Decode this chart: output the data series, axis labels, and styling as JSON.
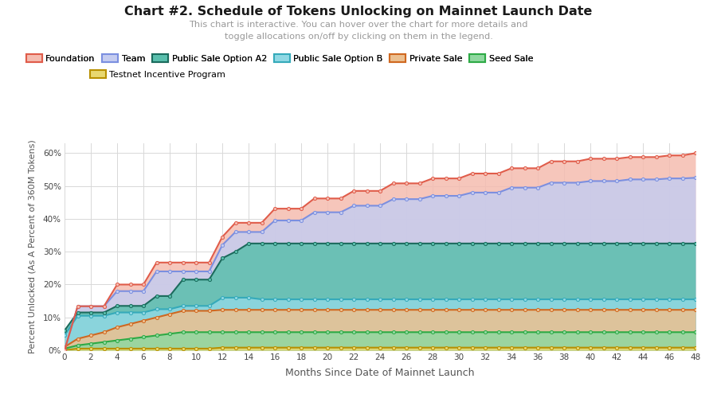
{
  "title": "Chart #2. Schedule of Tokens Unlocking on Mainnet Launch Date",
  "subtitle": "This chart is interactive. You can hover over the chart for more details and\ntoggle allocations on/off by clicking on them in the legend.",
  "xlabel": "Months Since Date of Mainnet Launch",
  "ylabel": "Percent Unlocked (As A Percent of 360M Tokens)",
  "x": [
    0,
    1,
    2,
    3,
    4,
    5,
    6,
    7,
    8,
    9,
    10,
    11,
    12,
    13,
    14,
    15,
    16,
    17,
    18,
    19,
    20,
    21,
    22,
    23,
    24,
    25,
    26,
    27,
    28,
    29,
    30,
    31,
    32,
    33,
    34,
    35,
    36,
    37,
    38,
    39,
    40,
    41,
    42,
    43,
    44,
    45,
    46,
    47,
    48
  ],
  "series_order": [
    "Foundation",
    "Team",
    "Public Sale Option A2",
    "Public Sale Option B",
    "Private Sale",
    "Seed Sale",
    "Testnet Incentive Program"
  ],
  "series": {
    "Foundation": {
      "line_color": "#e05c4a",
      "fill_color": "#f5bcb0",
      "values": [
        0.0,
        13.4,
        13.4,
        13.4,
        20.0,
        20.0,
        20.0,
        26.7,
        26.7,
        26.7,
        26.7,
        26.7,
        34.5,
        38.8,
        38.8,
        38.8,
        43.1,
        43.1,
        43.1,
        46.2,
        46.2,
        46.2,
        48.5,
        48.5,
        48.5,
        50.8,
        50.8,
        50.8,
        52.3,
        52.3,
        52.3,
        53.8,
        53.8,
        53.8,
        55.4,
        55.4,
        55.4,
        57.5,
        57.5,
        57.5,
        58.3,
        58.3,
        58.3,
        58.8,
        58.8,
        58.8,
        59.3,
        59.3,
        60.0
      ]
    },
    "Team": {
      "line_color": "#7b8fe0",
      "fill_color": "#c5ccf0",
      "values": [
        0.0,
        13.4,
        13.4,
        13.4,
        18.0,
        18.0,
        18.0,
        24.0,
        24.0,
        24.0,
        24.0,
        24.0,
        32.0,
        36.0,
        36.0,
        36.0,
        39.5,
        39.5,
        39.5,
        42.0,
        42.0,
        42.0,
        44.0,
        44.0,
        44.0,
        46.0,
        46.0,
        46.0,
        47.0,
        47.0,
        47.0,
        48.0,
        48.0,
        48.0,
        49.5,
        49.5,
        49.5,
        51.0,
        51.0,
        51.0,
        51.5,
        51.5,
        51.5,
        52.0,
        52.0,
        52.0,
        52.3,
        52.3,
        52.5
      ]
    },
    "Public Sale Option A2": {
      "line_color": "#1a6b5c",
      "fill_color": "#5abfad",
      "values": [
        6.0,
        11.5,
        11.5,
        11.5,
        13.5,
        13.5,
        13.5,
        16.5,
        16.5,
        21.5,
        21.5,
        21.5,
        28.0,
        30.0,
        32.5,
        32.5,
        32.5,
        32.5,
        32.5,
        32.5,
        32.5,
        32.5,
        32.5,
        32.5,
        32.5,
        32.5,
        32.5,
        32.5,
        32.5,
        32.5,
        32.5,
        32.5,
        32.5,
        32.5,
        32.5,
        32.5,
        32.5,
        32.5,
        32.5,
        32.5,
        32.5,
        32.5,
        32.5,
        32.5,
        32.5,
        32.5,
        32.5,
        32.5,
        32.5
      ]
    },
    "Public Sale Option B": {
      "line_color": "#35aaba",
      "fill_color": "#90d8e4",
      "values": [
        4.5,
        10.5,
        10.5,
        10.5,
        11.5,
        11.5,
        11.5,
        12.5,
        12.5,
        13.5,
        13.5,
        13.5,
        16.0,
        16.0,
        16.0,
        15.5,
        15.5,
        15.5,
        15.5,
        15.5,
        15.5,
        15.5,
        15.5,
        15.5,
        15.5,
        15.5,
        15.5,
        15.5,
        15.5,
        15.5,
        15.5,
        15.5,
        15.5,
        15.5,
        15.5,
        15.5,
        15.5,
        15.5,
        15.5,
        15.5,
        15.5,
        15.5,
        15.5,
        15.5,
        15.5,
        15.5,
        15.5,
        15.5,
        15.5
      ]
    },
    "Private Sale": {
      "line_color": "#d06820",
      "fill_color": "#ecc090",
      "values": [
        1.0,
        3.5,
        4.5,
        5.5,
        7.0,
        8.0,
        9.0,
        10.0,
        11.0,
        12.0,
        12.0,
        12.0,
        12.3,
        12.3,
        12.3,
        12.3,
        12.3,
        12.3,
        12.3,
        12.3,
        12.3,
        12.3,
        12.3,
        12.3,
        12.3,
        12.3,
        12.3,
        12.3,
        12.3,
        12.3,
        12.3,
        12.3,
        12.3,
        12.3,
        12.3,
        12.3,
        12.3,
        12.3,
        12.3,
        12.3,
        12.3,
        12.3,
        12.3,
        12.3,
        12.3,
        12.3,
        12.3,
        12.3,
        12.3
      ]
    },
    "Seed Sale": {
      "line_color": "#2daa45",
      "fill_color": "#90d8a0",
      "values": [
        0.5,
        1.5,
        2.0,
        2.5,
        3.0,
        3.5,
        4.0,
        4.5,
        5.0,
        5.5,
        5.5,
        5.5,
        5.5,
        5.5,
        5.5,
        5.5,
        5.5,
        5.5,
        5.5,
        5.5,
        5.5,
        5.5,
        5.5,
        5.5,
        5.5,
        5.5,
        5.5,
        5.5,
        5.5,
        5.5,
        5.5,
        5.5,
        5.5,
        5.5,
        5.5,
        5.5,
        5.5,
        5.5,
        5.5,
        5.5,
        5.5,
        5.5,
        5.5,
        5.5,
        5.5,
        5.5,
        5.5,
        5.5,
        5.5
      ]
    },
    "Testnet Incentive Program": {
      "line_color": "#b89000",
      "fill_color": "#e8d870",
      "values": [
        0.0,
        0.5,
        0.5,
        0.5,
        0.5,
        0.5,
        0.5,
        0.5,
        0.5,
        0.5,
        0.5,
        0.5,
        0.8,
        0.8,
        0.8,
        0.8,
        0.8,
        0.8,
        0.8,
        0.8,
        0.8,
        0.8,
        0.8,
        0.8,
        0.8,
        0.8,
        0.8,
        0.8,
        0.8,
        0.8,
        0.8,
        0.8,
        0.8,
        0.8,
        0.8,
        0.8,
        0.8,
        0.8,
        0.8,
        0.8,
        0.8,
        0.8,
        0.8,
        0.8,
        0.8,
        0.8,
        0.8,
        0.8,
        0.8
      ]
    }
  },
  "xticks": [
    0,
    2,
    4,
    6,
    8,
    10,
    12,
    14,
    16,
    18,
    20,
    22,
    24,
    26,
    28,
    30,
    32,
    34,
    36,
    38,
    40,
    42,
    44,
    46,
    48
  ],
  "yticks": [
    0,
    10,
    20,
    30,
    40,
    50,
    60
  ],
  "ylim": [
    0,
    63
  ],
  "xlim": [
    0,
    48
  ],
  "background_color": "#ffffff",
  "grid_color": "#d8d8d8",
  "marker": "o",
  "marker_size": 3.0,
  "linewidth": 1.5,
  "legend_row1": [
    "Foundation",
    "Team",
    "Public Sale Option A2",
    "Public Sale Option B",
    "Private Sale",
    "Seed Sale"
  ],
  "legend_row2": [
    "Testnet Incentive Program"
  ]
}
